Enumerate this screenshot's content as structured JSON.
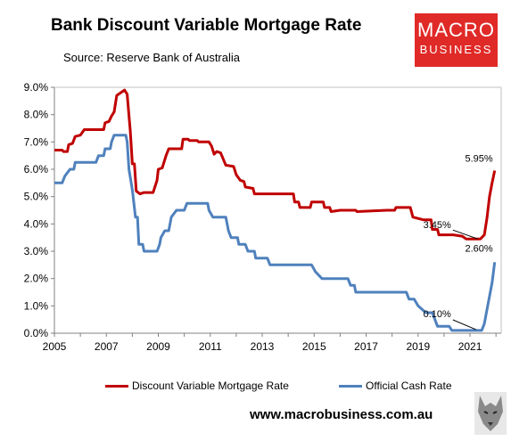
{
  "header": {
    "title": "Bank Discount Variable Mortgage Rate",
    "subtitle": "Source: Reserve Bank of Australia"
  },
  "logo": {
    "line1": "MACRO",
    "line2": "BUSINESS",
    "color": "#e02a27"
  },
  "footer": {
    "url": "www.macrobusiness.com.au"
  },
  "chart_data": {
    "type": "line",
    "title": "Bank Discount Variable Mortgage Rate",
    "xlabel": "",
    "ylabel": "",
    "xlim": [
      2005,
      2022.2
    ],
    "ylim": [
      0,
      9
    ],
    "x_ticks": [
      "2005",
      "2007",
      "2009",
      "2011",
      "2013",
      "2015",
      "2017",
      "2019",
      "2021"
    ],
    "y_ticks": [
      "0.0%",
      "1.0%",
      "2.0%",
      "3.0%",
      "4.0%",
      "5.0%",
      "6.0%",
      "7.0%",
      "8.0%",
      "9.0%"
    ],
    "grid": false,
    "legend_position": "bottom",
    "series": [
      {
        "name": "Discount Variable Mortgage Rate",
        "color": "#c00000",
        "points": [
          [
            2005.0,
            6.7
          ],
          [
            2005.3,
            6.7
          ],
          [
            2005.35,
            6.65
          ],
          [
            2005.5,
            6.65
          ],
          [
            2005.55,
            6.9
          ],
          [
            2005.7,
            6.95
          ],
          [
            2005.8,
            7.2
          ],
          [
            2006.0,
            7.25
          ],
          [
            2006.15,
            7.45
          ],
          [
            2006.9,
            7.45
          ],
          [
            2006.95,
            7.7
          ],
          [
            2007.1,
            7.75
          ],
          [
            2007.2,
            7.95
          ],
          [
            2007.3,
            8.1
          ],
          [
            2007.4,
            8.7
          ],
          [
            2007.55,
            8.8
          ],
          [
            2007.7,
            8.9
          ],
          [
            2007.8,
            8.75
          ],
          [
            2007.85,
            8.2
          ],
          [
            2007.92,
            7.4
          ],
          [
            2008.0,
            6.2
          ],
          [
            2008.08,
            6.2
          ],
          [
            2008.15,
            5.2
          ],
          [
            2008.3,
            5.1
          ],
          [
            2008.45,
            5.15
          ],
          [
            2008.8,
            5.15
          ],
          [
            2008.95,
            5.6
          ],
          [
            2009.0,
            6.0
          ],
          [
            2009.15,
            6.05
          ],
          [
            2009.3,
            6.5
          ],
          [
            2009.4,
            6.75
          ],
          [
            2009.9,
            6.75
          ],
          [
            2009.95,
            7.1
          ],
          [
            2010.15,
            7.1
          ],
          [
            2010.2,
            7.05
          ],
          [
            2010.5,
            7.05
          ],
          [
            2010.55,
            7.0
          ],
          [
            2010.95,
            7.0
          ],
          [
            2011.05,
            6.85
          ],
          [
            2011.15,
            6.55
          ],
          [
            2011.25,
            6.65
          ],
          [
            2011.4,
            6.6
          ],
          [
            2011.6,
            6.15
          ],
          [
            2011.9,
            6.1
          ],
          [
            2012.0,
            5.8
          ],
          [
            2012.15,
            5.6
          ],
          [
            2012.3,
            5.55
          ],
          [
            2012.35,
            5.35
          ],
          [
            2012.65,
            5.3
          ],
          [
            2012.7,
            5.1
          ],
          [
            2014.2,
            5.1
          ],
          [
            2014.25,
            4.8
          ],
          [
            2014.4,
            4.8
          ],
          [
            2014.45,
            4.6
          ],
          [
            2014.85,
            4.6
          ],
          [
            2014.9,
            4.8
          ],
          [
            2015.35,
            4.8
          ],
          [
            2015.4,
            4.6
          ],
          [
            2015.6,
            4.6
          ],
          [
            2015.65,
            4.45
          ],
          [
            2016.0,
            4.5
          ],
          [
            2016.6,
            4.5
          ],
          [
            2016.65,
            4.45
          ],
          [
            2017.8,
            4.5
          ],
          [
            2018.1,
            4.5
          ],
          [
            2018.15,
            4.6
          ],
          [
            2018.7,
            4.6
          ],
          [
            2018.8,
            4.25
          ],
          [
            2019.2,
            4.15
          ],
          [
            2019.5,
            4.15
          ],
          [
            2019.55,
            3.8
          ],
          [
            2019.75,
            3.8
          ],
          [
            2019.8,
            3.6
          ],
          [
            2020.35,
            3.6
          ],
          [
            2020.7,
            3.55
          ],
          [
            2020.85,
            3.45
          ],
          [
            2021.4,
            3.45
          ],
          [
            2021.55,
            3.6
          ],
          [
            2021.65,
            4.2
          ],
          [
            2021.75,
            5.0
          ],
          [
            2021.85,
            5.5
          ],
          [
            2021.95,
            5.95
          ]
        ]
      },
      {
        "name": "Official Cash Rate",
        "color": "#4f81bd",
        "points": [
          [
            2005.0,
            5.5
          ],
          [
            2005.3,
            5.5
          ],
          [
            2005.4,
            5.75
          ],
          [
            2005.6,
            6.0
          ],
          [
            2005.75,
            6.0
          ],
          [
            2005.8,
            6.25
          ],
          [
            2006.6,
            6.25
          ],
          [
            2006.7,
            6.5
          ],
          [
            2006.9,
            6.5
          ],
          [
            2006.95,
            6.75
          ],
          [
            2007.15,
            6.75
          ],
          [
            2007.2,
            7.0
          ],
          [
            2007.3,
            7.25
          ],
          [
            2007.75,
            7.25
          ],
          [
            2007.8,
            7.0
          ],
          [
            2007.87,
            6.0
          ],
          [
            2008.0,
            5.25
          ],
          [
            2008.12,
            4.25
          ],
          [
            2008.2,
            4.25
          ],
          [
            2008.25,
            3.25
          ],
          [
            2008.4,
            3.25
          ],
          [
            2008.45,
            3.0
          ],
          [
            2008.95,
            3.0
          ],
          [
            2009.05,
            3.25
          ],
          [
            2009.1,
            3.5
          ],
          [
            2009.25,
            3.75
          ],
          [
            2009.4,
            3.75
          ],
          [
            2009.5,
            4.25
          ],
          [
            2009.7,
            4.5
          ],
          [
            2010.0,
            4.5
          ],
          [
            2010.1,
            4.75
          ],
          [
            2010.9,
            4.75
          ],
          [
            2010.95,
            4.5
          ],
          [
            2011.1,
            4.25
          ],
          [
            2011.6,
            4.25
          ],
          [
            2011.7,
            3.75
          ],
          [
            2011.8,
            3.5
          ],
          [
            2012.05,
            3.5
          ],
          [
            2012.1,
            3.25
          ],
          [
            2012.35,
            3.25
          ],
          [
            2012.45,
            3.0
          ],
          [
            2012.7,
            3.0
          ],
          [
            2012.75,
            2.75
          ],
          [
            2013.2,
            2.75
          ],
          [
            2013.3,
            2.5
          ],
          [
            2014.9,
            2.5
          ],
          [
            2015.05,
            2.25
          ],
          [
            2015.3,
            2.0
          ],
          [
            2015.75,
            2.0
          ],
          [
            2016.3,
            2.0
          ],
          [
            2016.4,
            1.75
          ],
          [
            2016.55,
            1.75
          ],
          [
            2016.6,
            1.5
          ],
          [
            2018.55,
            1.5
          ],
          [
            2018.65,
            1.25
          ],
          [
            2018.85,
            1.25
          ],
          [
            2019.0,
            1.0
          ],
          [
            2019.3,
            0.75
          ],
          [
            2019.55,
            0.75
          ],
          [
            2019.65,
            0.5
          ],
          [
            2019.75,
            0.25
          ],
          [
            2020.2,
            0.25
          ],
          [
            2020.3,
            0.1
          ],
          [
            2021.45,
            0.1
          ],
          [
            2021.55,
            0.35
          ],
          [
            2021.65,
            0.85
          ],
          [
            2021.75,
            1.35
          ],
          [
            2021.85,
            1.85
          ],
          [
            2021.95,
            2.6
          ]
        ]
      }
    ],
    "annotations": [
      {
        "text": "5.95%",
        "x": 2021.95,
        "y": 5.95
      },
      {
        "text": "3.45%",
        "x": 2021.3,
        "y": 3.45
      },
      {
        "text": "2.60%",
        "x": 2021.95,
        "y": 2.6
      },
      {
        "text": "0.10%",
        "x": 2021.3,
        "y": 0.1
      }
    ]
  }
}
